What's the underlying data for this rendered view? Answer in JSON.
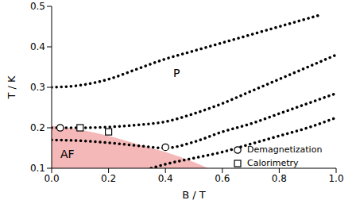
{
  "chart_data": {
    "type": "line",
    "xlabel": "B / T",
    "ylabel": "T / K",
    "xlim": [
      0,
      1
    ],
    "xticks": [
      {
        "value": 0,
        "label": "0.0"
      },
      {
        "value": 0.2,
        "label": "0.2"
      },
      {
        "value": 0.4,
        "label": "0.4"
      },
      {
        "value": 0.6,
        "label": "0.6"
      },
      {
        "value": 0.8,
        "label": "0.8"
      },
      {
        "value": 1,
        "label": "1.0"
      }
    ],
    "ylim": [
      0.1,
      0.5
    ],
    "yticks": [
      0.1,
      0.2,
      0.3,
      0.4,
      0.5
    ],
    "grid": false,
    "legend": "lower right",
    "annotations": [
      "P",
      "AF"
    ],
    "series": [
      {
        "type": "line",
        "color": "#000000",
        "line_style": "dotted",
        "x": [
          0,
          0.1,
          0.2,
          0.3,
          0.4,
          0.5,
          0.6,
          0.7,
          0.8,
          0.9,
          0.95
        ],
        "values": [
          0.3,
          0.305,
          0.32,
          0.345,
          0.37,
          0.39,
          0.41,
          0.43,
          0.45,
          0.47,
          0.48
        ]
      },
      {
        "type": "line",
        "color": "#000000",
        "line_style": "dotted",
        "x": [
          0,
          0.1,
          0.2,
          0.3,
          0.4,
          0.5,
          0.6,
          0.7,
          0.8,
          0.9,
          1
        ],
        "values": [
          0.2,
          0.2,
          0.202,
          0.207,
          0.215,
          0.235,
          0.26,
          0.29,
          0.32,
          0.35,
          0.38
        ]
      },
      {
        "type": "line",
        "color": "#000000",
        "line_style": "dotted",
        "x": [
          0,
          0.1,
          0.2,
          0.3,
          0.4,
          0.5,
          0.6,
          0.7,
          0.8,
          0.9,
          1
        ],
        "values": [
          0.17,
          0.168,
          0.163,
          0.156,
          0.15,
          0.165,
          0.19,
          0.21,
          0.235,
          0.26,
          0.285
        ]
      },
      {
        "type": "line",
        "color": "#000000",
        "line_style": "dotted",
        "x": [
          0.35,
          0.4,
          0.5,
          0.6,
          0.7,
          0.8,
          0.9,
          1
        ],
        "values": [
          0.1,
          0.11,
          0.125,
          0.14,
          0.16,
          0.18,
          0.2,
          0.225
        ]
      },
      {
        "type": "area",
        "color": "#f4b8b8",
        "x": [
          0,
          0.1,
          0.2,
          0.3,
          0.4,
          0.5,
          0.55
        ],
        "values": [
          0.205,
          0.195,
          0.18,
          0.16,
          0.14,
          0.115,
          0.1
        ]
      },
      {
        "name": "Demagnetization",
        "type": "scatter",
        "marker": "circle",
        "color": "#000000",
        "x": [
          0.03,
          0.4
        ],
        "values": [
          0.2,
          0.152
        ]
      },
      {
        "name": "Calorimetry",
        "type": "scatter",
        "marker": "square",
        "color": "#000000",
        "x": [
          0.1,
          0.2
        ],
        "values": [
          0.2,
          0.19
        ]
      }
    ]
  }
}
